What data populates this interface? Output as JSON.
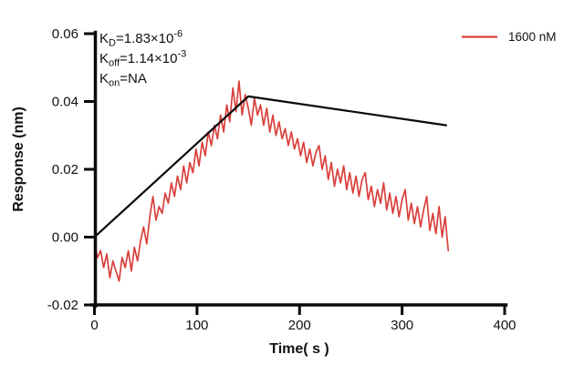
{
  "chart_data": {
    "type": "line",
    "title": "",
    "xlabel": "Time( s )",
    "ylabel": "Response (nm)",
    "xlim": [
      0,
      400
    ],
    "ylim": [
      -0.02,
      0.06
    ],
    "xticks": [
      0,
      100,
      200,
      300,
      400
    ],
    "xtick_labels": [
      "0",
      "100",
      "200",
      "300",
      "400"
    ],
    "yticks": [
      -0.02,
      0,
      0.02,
      0.04,
      0.06
    ],
    "ytick_labels": [
      "-0.02",
      "0.00",
      "0.02",
      "0.04",
      "0.06"
    ],
    "grid": false,
    "legend_position": "top-right",
    "legend": [
      {
        "label": "1600 nM",
        "color": "#d9413c"
      }
    ],
    "annotations": [
      {
        "prefix": "K",
        "sub": "D",
        "mid": "=1.83×10",
        "sup": "-6"
      },
      {
        "prefix": "K",
        "sub": "off",
        "mid": "=1.14×10",
        "sup": "-3"
      },
      {
        "prefix": "K",
        "sub": "on",
        "mid": "=NA",
        "sup": ""
      }
    ],
    "series": [
      {
        "name": "1600 nM",
        "kind": "measured",
        "color": "#d9413c",
        "stroke_width": 1.7,
        "points": [
          [
            0,
            -0.002
          ],
          [
            3,
            -0.006
          ],
          [
            6,
            -0.004
          ],
          [
            9,
            -0.009
          ],
          [
            12,
            -0.005
          ],
          [
            15,
            -0.012
          ],
          [
            18,
            -0.007
          ],
          [
            21,
            -0.01
          ],
          [
            24,
            -0.013
          ],
          [
            27,
            -0.006
          ],
          [
            30,
            -0.009
          ],
          [
            33,
            -0.004
          ],
          [
            36,
            -0.01
          ],
          [
            39,
            -0.003
          ],
          [
            42,
            -0.007
          ],
          [
            45,
            -0.001
          ],
          [
            48,
            0.003
          ],
          [
            51,
            -0.002
          ],
          [
            54,
            0.006
          ],
          [
            57,
            0.012
          ],
          [
            60,
            0.005
          ],
          [
            63,
            0.009
          ],
          [
            66,
            0.007
          ],
          [
            69,
            0.013
          ],
          [
            72,
            0.01
          ],
          [
            75,
            0.016
          ],
          [
            78,
            0.012
          ],
          [
            81,
            0.018
          ],
          [
            84,
            0.014
          ],
          [
            87,
            0.021
          ],
          [
            90,
            0.016
          ],
          [
            93,
            0.022
          ],
          [
            96,
            0.019
          ],
          [
            99,
            0.026
          ],
          [
            102,
            0.021
          ],
          [
            105,
            0.028
          ],
          [
            108,
            0.024
          ],
          [
            111,
            0.031
          ],
          [
            114,
            0.027
          ],
          [
            117,
            0.033
          ],
          [
            120,
            0.029
          ],
          [
            123,
            0.036
          ],
          [
            126,
            0.031
          ],
          [
            129,
            0.039
          ],
          [
            132,
            0.034
          ],
          [
            135,
            0.044
          ],
          [
            138,
            0.037
          ],
          [
            141,
            0.046
          ],
          [
            144,
            0.036
          ],
          [
            147,
            0.042
          ],
          [
            150,
            0.038
          ],
          [
            153,
            0.033
          ],
          [
            156,
            0.041
          ],
          [
            159,
            0.036
          ],
          [
            162,
            0.039
          ],
          [
            165,
            0.033
          ],
          [
            168,
            0.038
          ],
          [
            171,
            0.031
          ],
          [
            174,
            0.036
          ],
          [
            177,
            0.03
          ],
          [
            180,
            0.034
          ],
          [
            183,
            0.029
          ],
          [
            186,
            0.032
          ],
          [
            189,
            0.027
          ],
          [
            192,
            0.031
          ],
          [
            195,
            0.026
          ],
          [
            198,
            0.029
          ],
          [
            201,
            0.024
          ],
          [
            204,
            0.028
          ],
          [
            207,
            0.022
          ],
          [
            210,
            0.026
          ],
          [
            213,
            0.021
          ],
          [
            216,
            0.025
          ],
          [
            219,
            0.027
          ],
          [
            222,
            0.02
          ],
          [
            225,
            0.024
          ],
          [
            228,
            0.017
          ],
          [
            231,
            0.022
          ],
          [
            234,
            0.015
          ],
          [
            237,
            0.02
          ],
          [
            240,
            0.016
          ],
          [
            243,
            0.021
          ],
          [
            246,
            0.014
          ],
          [
            249,
            0.019
          ],
          [
            252,
            0.013
          ],
          [
            255,
            0.018
          ],
          [
            258,
            0.012
          ],
          [
            261,
            0.017
          ],
          [
            264,
            0.019
          ],
          [
            267,
            0.011
          ],
          [
            270,
            0.015
          ],
          [
            273,
            0.009
          ],
          [
            276,
            0.014
          ],
          [
            279,
            0.01
          ],
          [
            282,
            0.016
          ],
          [
            285,
            0.008
          ],
          [
            288,
            0.013
          ],
          [
            291,
            0.007
          ],
          [
            294,
            0.012
          ],
          [
            297,
            0.006
          ],
          [
            300,
            0.011
          ],
          [
            303,
            0.014
          ],
          [
            306,
            0.005
          ],
          [
            309,
            0.01
          ],
          [
            312,
            0.004
          ],
          [
            315,
            0.009
          ],
          [
            318,
            0.003
          ],
          [
            321,
            0.008
          ],
          [
            324,
            0.012
          ],
          [
            327,
            0.002
          ],
          [
            330,
            0.007
          ],
          [
            333,
            0.001
          ],
          [
            336,
            0.009
          ],
          [
            339,
            0.0
          ],
          [
            342,
            0.006
          ],
          [
            345,
            -0.004
          ]
        ]
      },
      {
        "name": "fit",
        "kind": "fit",
        "color": "#0a0a0a",
        "stroke_width": 2.2,
        "points": [
          [
            0,
            0.0
          ],
          [
            150,
            0.0415
          ],
          [
            343,
            0.033
          ]
        ]
      }
    ]
  }
}
